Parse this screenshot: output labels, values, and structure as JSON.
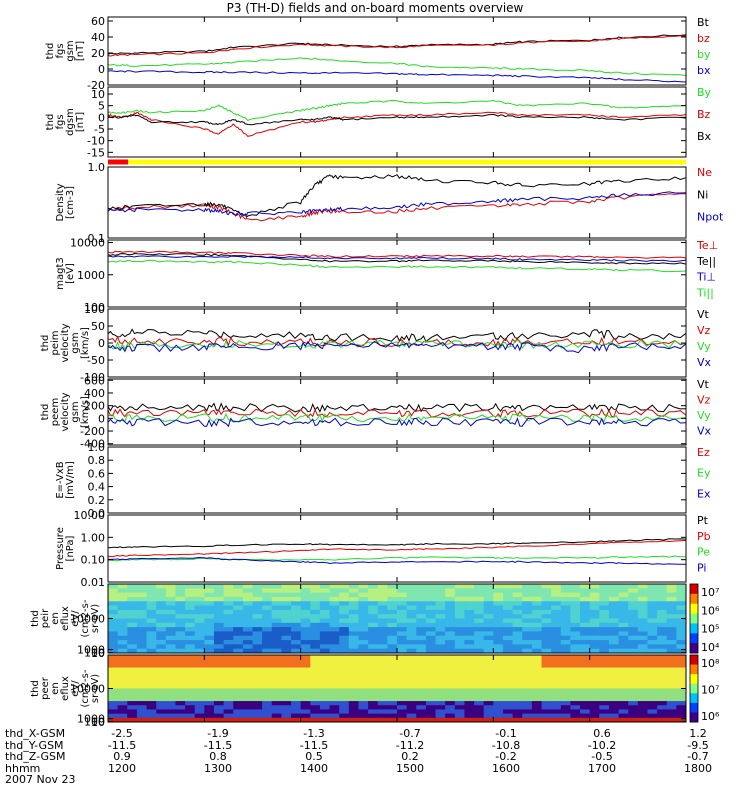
{
  "title": "P3 (TH-D) fields and on-board moments overview",
  "date_label": "2007 Nov 23",
  "footer_rows": [
    {
      "label": "thd_X-GSM",
      "values": [
        "-2.5",
        "-1.9",
        "-1.3",
        "-0.7",
        "-0.1",
        "0.6",
        "1.2"
      ]
    },
    {
      "label": "thd_Y-GSM",
      "values": [
        "-11.5",
        "-11.5",
        "-11.5",
        "-11.2",
        "-10.8",
        "-10.2",
        "-9.5"
      ]
    },
    {
      "label": "thd_Z-GSM",
      "values": [
        "0.9",
        "0.8",
        "0.5",
        "0.2",
        "-0.2",
        "-0.5",
        "-0.7"
      ]
    },
    {
      "label": "hhmm",
      "values": [
        "1200",
        "1300",
        "1400",
        "1500",
        "1600",
        "1700",
        "1800"
      ]
    }
  ],
  "colors": {
    "black": "#000000",
    "red": "#e00000",
    "green": "#22dd22",
    "blue": "#0000cc",
    "yellow": "#ffff00"
  },
  "status_bar": {
    "segments": [
      {
        "from": 1200,
        "to": 1221,
        "color": "#ff0000"
      },
      {
        "from": 1221,
        "to": 1800,
        "color": "#ffff00"
      }
    ]
  },
  "chart_data": [
    {
      "type": "line",
      "ylabel": [
        "thd",
        "fgs",
        "gsm",
        "[nT]"
      ],
      "ylim": [
        -20,
        65
      ],
      "yticks": [
        "60",
        "40",
        "20",
        "0",
        "-20"
      ],
      "ytick_values": [
        60,
        40,
        20,
        0,
        -20
      ],
      "x": [
        1200,
        1230,
        1300,
        1330,
        1400,
        1430,
        1500,
        1530,
        1600,
        1630,
        1700,
        1730,
        1800
      ],
      "series": [
        {
          "name": "Bt",
          "color": "#000000",
          "values": [
            19,
            20,
            22,
            27,
            32,
            30,
            28,
            30,
            31,
            34,
            36,
            39,
            43
          ]
        },
        {
          "name": "bz",
          "color": "#e00000",
          "values": [
            17,
            18,
            20,
            25,
            31,
            29,
            27,
            29,
            30,
            33,
            35,
            38,
            42
          ]
        },
        {
          "name": "by",
          "color": "#22dd22",
          "values": [
            5,
            4,
            6,
            8,
            14,
            11,
            7,
            3,
            1,
            0,
            -2,
            -5,
            -8
          ]
        },
        {
          "name": "bx",
          "color": "#0000cc",
          "values": [
            -3,
            -3,
            -4,
            -4,
            -5,
            -5,
            -6,
            -7,
            -8,
            -9,
            -11,
            -13,
            -16
          ]
        }
      ],
      "legend": [
        "Bt",
        "bz",
        "by",
        "bx"
      ]
    },
    {
      "type": "line",
      "ylabel": [
        "thd",
        "fgs",
        "dgsm",
        "[nT]"
      ],
      "ylim": [
        -17,
        13
      ],
      "yticks": [
        "10",
        "5",
        "0",
        "-5",
        "-10",
        "-15"
      ],
      "ytick_values": [
        10,
        5,
        0,
        -5,
        -10,
        -15
      ],
      "x": [
        1200,
        1215,
        1230,
        1245,
        1300,
        1315,
        1330,
        1345,
        1400,
        1415,
        1430,
        1445,
        1500,
        1530,
        1600,
        1630,
        1700,
        1730,
        1800
      ],
      "series": [
        {
          "name": "By",
          "color": "#22dd22",
          "values": [
            2,
            2,
            3,
            2,
            3,
            5,
            2,
            -1,
            3,
            4,
            5,
            6,
            7,
            6,
            7,
            5,
            6,
            4,
            5
          ]
        },
        {
          "name": "Bz",
          "color": "#e00000",
          "values": [
            1,
            0,
            2,
            -1,
            -5,
            -7,
            -3,
            -8,
            -2,
            -2,
            -1,
            0,
            1,
            1,
            2,
            1,
            1,
            0,
            1
          ]
        },
        {
          "name": "Bx",
          "color": "#000000",
          "values": [
            0,
            0,
            1,
            -2,
            -2,
            -3,
            -1,
            -3,
            -1,
            -1,
            0,
            -1,
            0,
            0,
            1,
            0,
            0,
            -1,
            0
          ]
        }
      ],
      "legend": [
        "By",
        "Bz",
        "Bx"
      ]
    },
    {
      "type": "line",
      "log": true,
      "ylabel": [
        "Density",
        "[cm-3]"
      ],
      "ylim": [
        0.1,
        1.0
      ],
      "yticks": [
        "1.0",
        "0.1"
      ],
      "ytick_values": [
        1.0,
        0.1
      ],
      "x": [
        1200,
        1230,
        1300,
        1315,
        1330,
        1345,
        1400,
        1415,
        1430,
        1445,
        1500,
        1530,
        1600,
        1630,
        1700,
        1730,
        1800
      ],
      "series": [
        {
          "name": "Ne",
          "color": "#e00000",
          "values": [
            0.25,
            0.27,
            0.29,
            0.27,
            0.22,
            0.18,
            0.2,
            0.23,
            0.24,
            0.23,
            0.24,
            0.26,
            0.28,
            0.3,
            0.33,
            0.37,
            0.42
          ]
        },
        {
          "name": "Ni",
          "color": "#000000",
          "values": [
            0.26,
            0.28,
            0.3,
            0.3,
            0.24,
            0.2,
            0.32,
            0.55,
            0.75,
            0.7,
            0.75,
            0.65,
            0.6,
            0.55,
            0.58,
            0.63,
            0.7
          ]
        },
        {
          "name": "Npot",
          "color": "#0000cc",
          "values": [
            0.24,
            0.25,
            0.25,
            0.24,
            0.22,
            0.22,
            0.23,
            0.24,
            0.25,
            0.26,
            0.27,
            0.3,
            0.33,
            0.35,
            0.37,
            0.4,
            0.43
          ]
        }
      ],
      "legend": [
        "Ne",
        "Ni",
        "Npot"
      ]
    },
    {
      "type": "line",
      "log": true,
      "ylabel": [
        "magt3",
        "[eV]"
      ],
      "ylim": [
        100,
        12000
      ],
      "yticks": [
        "10000",
        "1000",
        "100"
      ],
      "ytick_values": [
        10000,
        1000,
        100
      ],
      "x": [
        1200,
        1230,
        1300,
        1330,
        1400,
        1430,
        1500,
        1530,
        1600,
        1630,
        1700,
        1730,
        1800
      ],
      "series": [
        {
          "name": "Te⊥",
          "color": "#e00000",
          "values": [
            5000,
            5200,
            4900,
            4700,
            4000,
            3700,
            3800,
            3900,
            3800,
            3700,
            3600,
            3500,
            3400
          ]
        },
        {
          "name": "Te||",
          "color": "#000000",
          "values": [
            4200,
            4400,
            4200,
            4000,
            3000,
            2600,
            2700,
            2800,
            2700,
            2600,
            2400,
            2300,
            2200
          ]
        },
        {
          "name": "Ti⊥",
          "color": "#0000cc",
          "values": [
            3600,
            3800,
            3600,
            3700,
            3500,
            3200,
            3300,
            3300,
            3200,
            3000,
            2900,
            2800,
            2700
          ]
        },
        {
          "name": "Ti||",
          "color": "#22dd22",
          "values": [
            2600,
            2700,
            2500,
            2500,
            2000,
            1700,
            1800,
            1800,
            1700,
            1600,
            1500,
            1400,
            1300
          ]
        }
      ],
      "legend": [
        "Te⊥",
        "Te||",
        "Ti⊥",
        "Ti||"
      ]
    },
    {
      "type": "line",
      "ylabel": [
        "thd",
        "peim",
        "velocity",
        "gsm",
        "[km/s]"
      ],
      "ylim": [
        -100,
        100
      ],
      "yticks": [
        "100",
        "50",
        "0",
        "-50",
        "-100"
      ],
      "ytick_values": [
        100,
        50,
        0,
        -50,
        -100
      ],
      "x": [
        1200,
        1230,
        1300,
        1330,
        1400,
        1430,
        1500,
        1530,
        1600,
        1630,
        1700,
        1730,
        1800
      ],
      "series": [
        {
          "name": "Vt",
          "color": "#000000",
          "values": [
            25,
            30,
            28,
            25,
            22,
            18,
            15,
            16,
            18,
            22,
            30,
            22,
            18
          ]
        },
        {
          "name": "Vz",
          "color": "#e00000",
          "values": [
            5,
            8,
            6,
            4,
            3,
            2,
            2,
            2,
            3,
            4,
            6,
            4,
            3
          ]
        },
        {
          "name": "Vy",
          "color": "#22dd22",
          "values": [
            -5,
            -6,
            -4,
            -3,
            -5,
            -3,
            -4,
            -3,
            -2,
            -4,
            -5,
            -3,
            -2
          ]
        },
        {
          "name": "Vx",
          "color": "#0000cc",
          "values": [
            -10,
            -15,
            -12,
            -10,
            -8,
            -6,
            -8,
            -6,
            -8,
            -10,
            -20,
            -10,
            -6
          ]
        }
      ],
      "legend": [
        "Vt",
        "Vz",
        "Vy",
        "Vx"
      ]
    },
    {
      "type": "line",
      "ylabel": [
        "thd",
        "peem",
        "velocity",
        "gsm",
        "[km/s]"
      ],
      "ylim": [
        -420,
        620
      ],
      "yticks": [
        "600",
        "400",
        "200",
        "0",
        "-200",
        "-400"
      ],
      "ytick_values": [
        600,
        400,
        200,
        0,
        -200,
        -400
      ],
      "x": [
        1200,
        1230,
        1300,
        1330,
        1400,
        1430,
        1500,
        1530,
        1600,
        1630,
        1700,
        1730,
        1800
      ],
      "series": [
        {
          "name": "Vt",
          "color": "#000000",
          "values": [
            160,
            170,
            180,
            170,
            165,
            160,
            160,
            165,
            170,
            165,
            170,
            165,
            160
          ]
        },
        {
          "name": "Vz",
          "color": "#e00000",
          "values": [
            80,
            85,
            90,
            80,
            80,
            75,
            78,
            80,
            82,
            80,
            82,
            80,
            78
          ]
        },
        {
          "name": "Vy",
          "color": "#22dd22",
          "values": [
            10,
            8,
            10,
            5,
            8,
            5,
            6,
            8,
            6,
            8,
            10,
            8,
            6
          ]
        },
        {
          "name": "Vx",
          "color": "#0000cc",
          "values": [
            -60,
            -65,
            -70,
            -60,
            -60,
            -55,
            -60,
            -58,
            -60,
            -62,
            -60,
            -58,
            -55
          ]
        }
      ],
      "legend": [
        "Vt",
        "Vz",
        "Vy",
        "Vx"
      ]
    },
    {
      "type": "line",
      "ylabel": [
        "E=-VxB",
        "[mV/m]"
      ],
      "ylim": [
        0,
        1
      ],
      "yticks": [
        "1.0",
        "0.8",
        "0.6",
        "0.4",
        "0.2",
        "0.0"
      ],
      "ytick_values": [
        1.0,
        0.8,
        0.6,
        0.4,
        0.2,
        0.0
      ],
      "x": [],
      "series": [],
      "legend": [
        "Ez",
        "Ey",
        "Ex"
      ],
      "legend_colors": [
        "#e00000",
        "#22dd22",
        "#0000cc"
      ]
    },
    {
      "type": "line",
      "log": true,
      "ylabel": [
        "Pressure",
        "[nPa]"
      ],
      "ylim": [
        0.01,
        10
      ],
      "yticks": [
        "10.00",
        "1.00",
        "0.10",
        "0.01"
      ],
      "ytick_values": [
        10,
        1,
        0.1,
        0.01
      ],
      "x": [
        1200,
        1230,
        1300,
        1330,
        1400,
        1430,
        1500,
        1530,
        1600,
        1630,
        1700,
        1730,
        1800
      ],
      "series": [
        {
          "name": "Pt",
          "color": "#000000",
          "values": [
            0.35,
            0.38,
            0.4,
            0.45,
            0.5,
            0.48,
            0.46,
            0.5,
            0.52,
            0.56,
            0.62,
            0.7,
            0.85
          ]
        },
        {
          "name": "Pb",
          "color": "#e00000",
          "values": [
            0.14,
            0.16,
            0.18,
            0.2,
            0.25,
            0.3,
            0.28,
            0.3,
            0.35,
            0.4,
            0.5,
            0.6,
            0.7
          ]
        },
        {
          "name": "Pe",
          "color": "#22dd22",
          "values": [
            0.09,
            0.1,
            0.11,
            0.1,
            0.1,
            0.1,
            0.12,
            0.13,
            0.12,
            0.12,
            0.12,
            0.13,
            0.14
          ]
        },
        {
          "name": "Pi",
          "color": "#0000cc",
          "values": [
            0.1,
            0.11,
            0.12,
            0.1,
            0.08,
            0.07,
            0.08,
            0.08,
            0.08,
            0.08,
            0.07,
            0.07,
            0.06
          ]
        }
      ],
      "legend": [
        "Pt",
        "Pb",
        "Pe",
        "Pi"
      ]
    },
    {
      "type": "heatmap",
      "ylabel": [
        "thd",
        "peir",
        "en",
        "eflux",
        "eV/",
        "(cm2-s-",
        "sr-eV)"
      ],
      "ylim": [
        7,
        20000
      ],
      "yticks": [
        "10000",
        "1000",
        "100",
        "10"
      ],
      "ytick_values": [
        10000,
        1000,
        100,
        10
      ],
      "colorbar": {
        "labels": [
          "10⁷",
          "10⁶",
          "10⁵",
          "10⁴"
        ]
      }
    },
    {
      "type": "heatmap",
      "ylabel": [
        "thd",
        "peer",
        "en",
        "eflux",
        "eV/",
        "(cm2-s-",
        "sr-eV)"
      ],
      "ylim": [
        7,
        20000
      ],
      "yticks": [
        "10000",
        "1000",
        "100",
        "10"
      ],
      "ytick_values": [
        10000,
        1000,
        100,
        10
      ],
      "colorbar": {
        "labels": [
          "10⁸",
          "10⁷",
          "10⁶"
        ]
      }
    }
  ]
}
